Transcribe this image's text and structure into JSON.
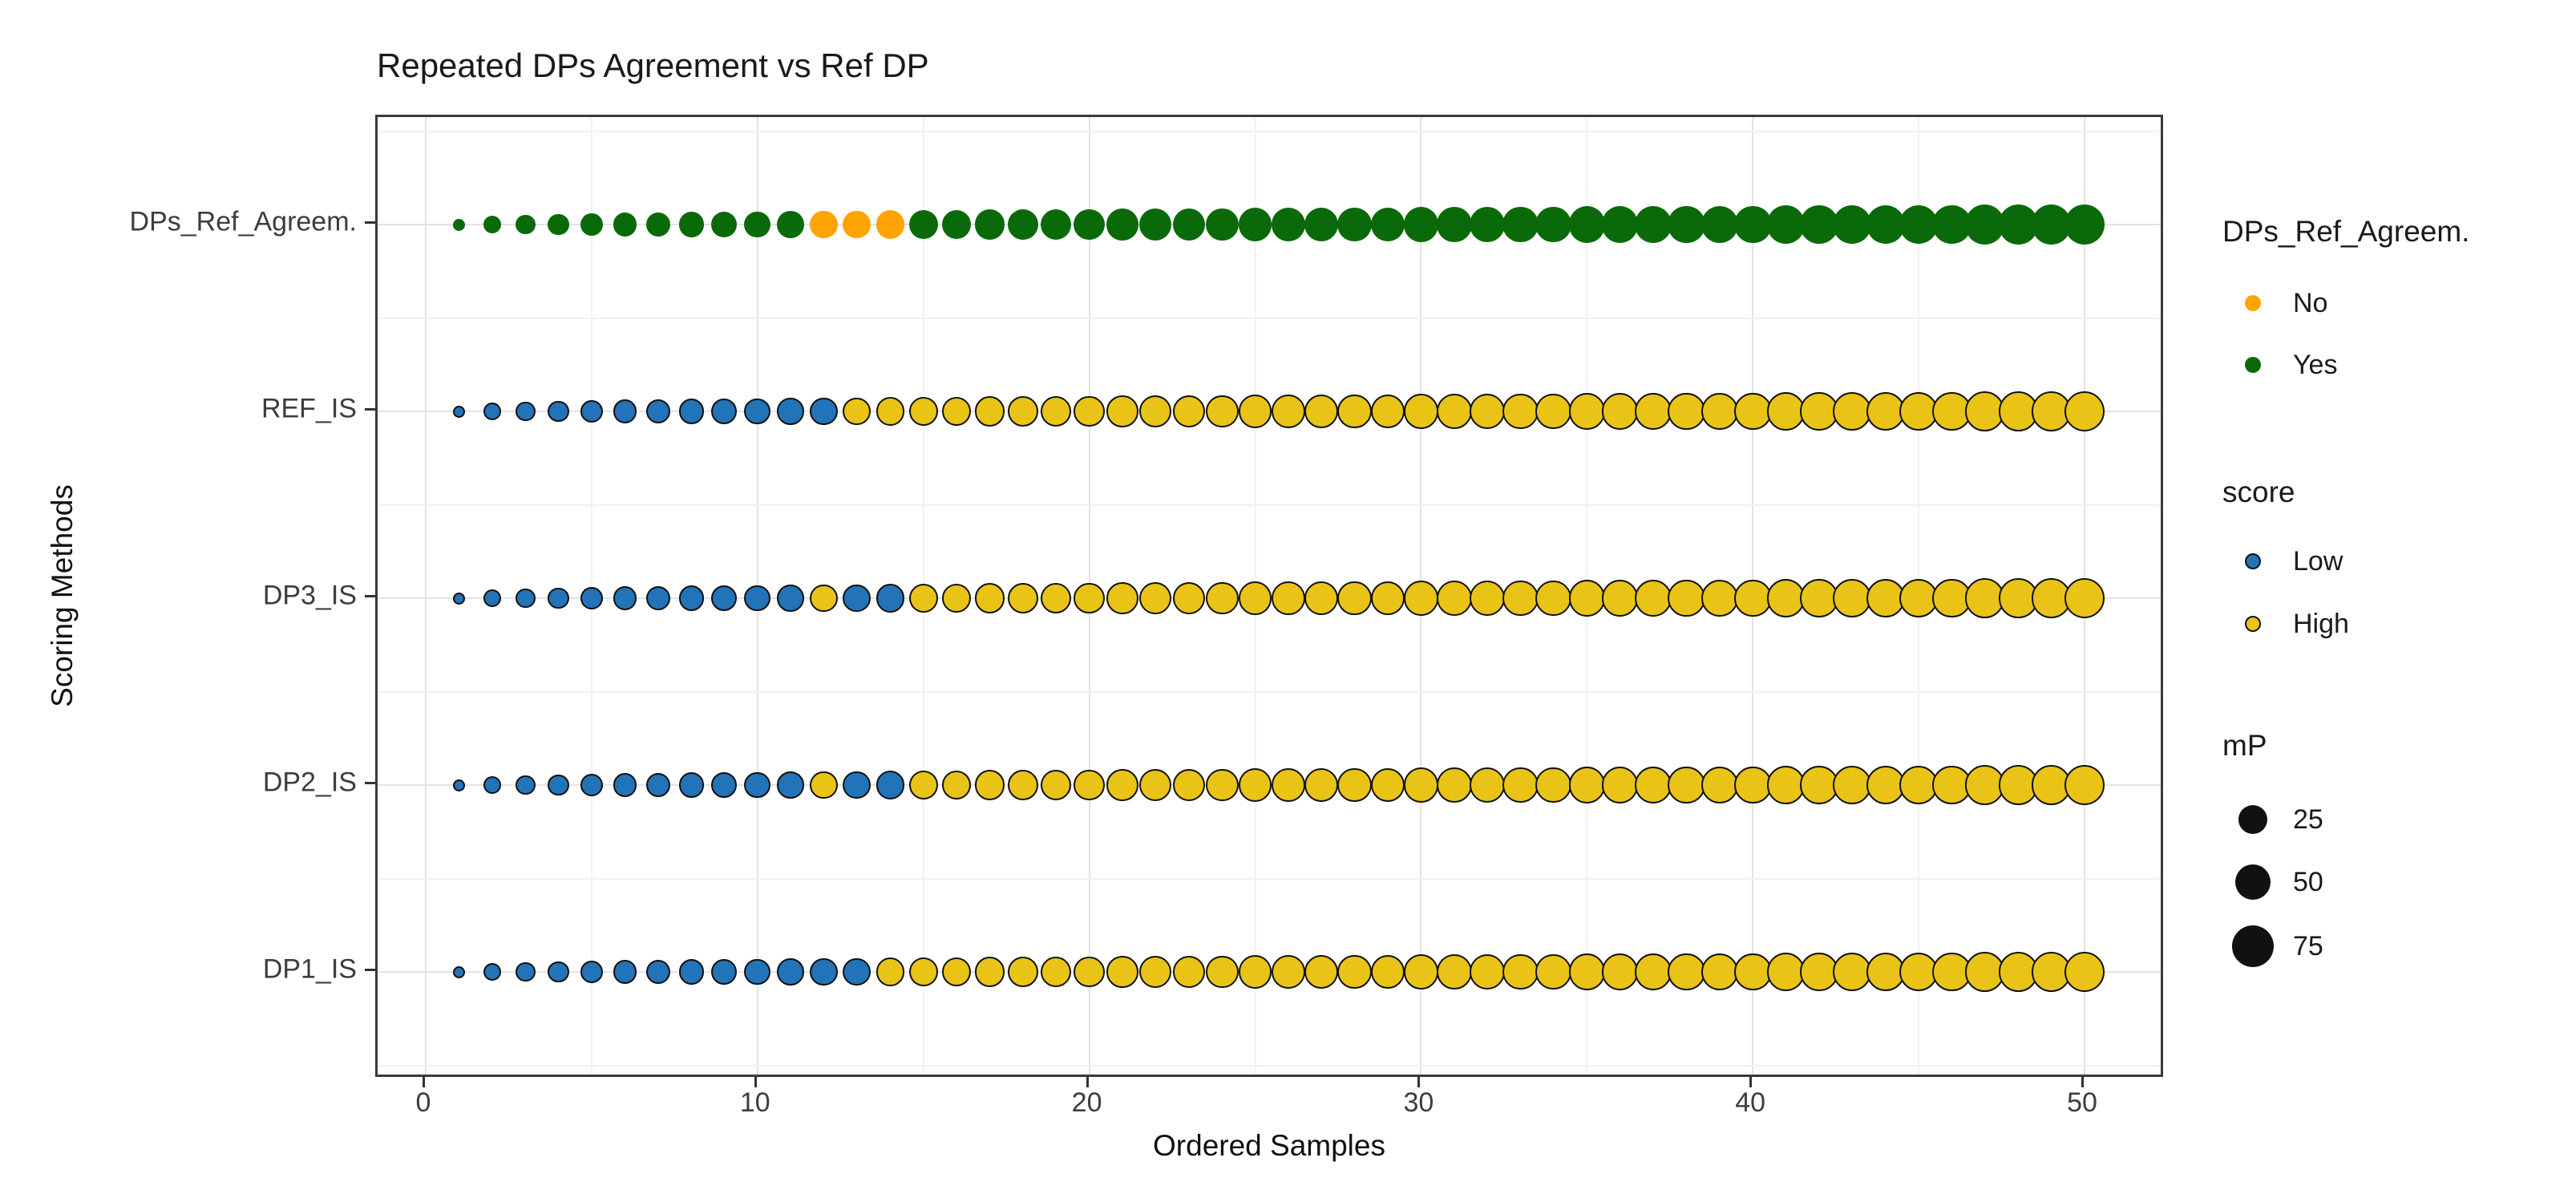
{
  "chart_data": {
    "type": "bubble-scatter",
    "title": "Repeated DPs Agreement vs Ref DP",
    "axes": {
      "x": {
        "title": "Ordered Samples",
        "tick_labels": [
          "0",
          "10",
          "20",
          "30",
          "40",
          "50"
        ],
        "tick_values": [
          0,
          10,
          20,
          30,
          40,
          50
        ],
        "minor_gridlines": [
          5,
          15,
          25,
          35,
          45
        ],
        "range": [
          1,
          50
        ]
      },
      "y": {
        "title": "Scoring Methods",
        "categories": [
          "DPs_Ref_Agreem.",
          "REF_IS",
          "DP3_IS",
          "DP2_IS",
          "DP1_IS"
        ]
      }
    },
    "legends": {
      "agreement": {
        "title": "DPs_Ref_Agreem.",
        "items": [
          {
            "label": "No",
            "color": "#FFA405"
          },
          {
            "label": "Yes",
            "color": "#0A6A0A"
          }
        ]
      },
      "score": {
        "title": "score",
        "items": [
          {
            "label": "Low",
            "color": "#2273B8"
          },
          {
            "label": "High",
            "color": "#E9C417"
          }
        ]
      },
      "mp": {
        "title": "mP",
        "items": [
          {
            "label": "25"
          },
          {
            "label": "50"
          },
          {
            "label": "75"
          }
        ]
      }
    },
    "colors": {
      "agreement": {
        "No": "#FFA405",
        "Yes": "#0A6A0A"
      },
      "score": {
        "Low": "#2273B8",
        "High": "#E9C417"
      },
      "point_outline": "#111111",
      "legend_size_key": "#111111"
    },
    "samples": [
      {
        "i": 1,
        "mp": 1,
        "agreement": "Yes",
        "ref": "Low",
        "dp3": "Low",
        "dp2": "Low",
        "dp1": "Low"
      },
      {
        "i": 2,
        "mp": 4,
        "agreement": "Yes",
        "ref": "Low",
        "dp3": "Low",
        "dp2": "Low",
        "dp1": "Low"
      },
      {
        "i": 3,
        "mp": 6,
        "agreement": "Yes",
        "ref": "Low",
        "dp3": "Low",
        "dp2": "Low",
        "dp1": "Low"
      },
      {
        "i": 4,
        "mp": 9,
        "agreement": "Yes",
        "ref": "Low",
        "dp3": "Low",
        "dp2": "Low",
        "dp1": "Low"
      },
      {
        "i": 5,
        "mp": 11,
        "agreement": "Yes",
        "ref": "Low",
        "dp3": "Low",
        "dp2": "Low",
        "dp1": "Low"
      },
      {
        "i": 6,
        "mp": 13,
        "agreement": "Yes",
        "ref": "Low",
        "dp3": "Low",
        "dp2": "Low",
        "dp1": "Low"
      },
      {
        "i": 7,
        "mp": 15,
        "agreement": "Yes",
        "ref": "Low",
        "dp3": "Low",
        "dp2": "Low",
        "dp1": "Low"
      },
      {
        "i": 8,
        "mp": 17,
        "agreement": "Yes",
        "ref": "Low",
        "dp3": "Low",
        "dp2": "Low",
        "dp1": "Low"
      },
      {
        "i": 9,
        "mp": 19,
        "agreement": "Yes",
        "ref": "Low",
        "dp3": "Low",
        "dp2": "Low",
        "dp1": "Low"
      },
      {
        "i": 10,
        "mp": 21,
        "agreement": "Yes",
        "ref": "Low",
        "dp3": "Low",
        "dp2": "Low",
        "dp1": "Low"
      },
      {
        "i": 11,
        "mp": 22,
        "agreement": "Yes",
        "ref": "Low",
        "dp3": "Low",
        "dp2": "Low",
        "dp1": "Low"
      },
      {
        "i": 12,
        "mp": 24,
        "agreement": "No",
        "ref": "Low",
        "dp3": "High",
        "dp2": "High",
        "dp1": "Low"
      },
      {
        "i": 13,
        "mp": 26,
        "agreement": "No",
        "ref": "High",
        "dp3": "Low",
        "dp2": "Low",
        "dp1": "Low"
      },
      {
        "i": 14,
        "mp": 28,
        "agreement": "No",
        "ref": "High",
        "dp3": "Low",
        "dp2": "Low",
        "dp1": "High"
      },
      {
        "i": 15,
        "mp": 29,
        "agreement": "Yes",
        "ref": "High",
        "dp3": "High",
        "dp2": "High",
        "dp1": "High"
      },
      {
        "i": 16,
        "mp": 31,
        "agreement": "Yes",
        "ref": "High",
        "dp3": "High",
        "dp2": "High",
        "dp1": "High"
      },
      {
        "i": 17,
        "mp": 33,
        "agreement": "Yes",
        "ref": "High",
        "dp3": "High",
        "dp2": "High",
        "dp1": "High"
      },
      {
        "i": 18,
        "mp": 34,
        "agreement": "Yes",
        "ref": "High",
        "dp3": "High",
        "dp2": "High",
        "dp1": "High"
      },
      {
        "i": 19,
        "mp": 36,
        "agreement": "Yes",
        "ref": "High",
        "dp3": "High",
        "dp2": "High",
        "dp1": "High"
      },
      {
        "i": 20,
        "mp": 37,
        "agreement": "Yes",
        "ref": "High",
        "dp3": "High",
        "dp2": "High",
        "dp1": "High"
      },
      {
        "i": 21,
        "mp": 39,
        "agreement": "Yes",
        "ref": "High",
        "dp3": "High",
        "dp2": "High",
        "dp1": "High"
      },
      {
        "i": 22,
        "mp": 41,
        "agreement": "Yes",
        "ref": "High",
        "dp3": "High",
        "dp2": "High",
        "dp1": "High"
      },
      {
        "i": 23,
        "mp": 42,
        "agreement": "Yes",
        "ref": "High",
        "dp3": "High",
        "dp2": "High",
        "dp1": "High"
      },
      {
        "i": 24,
        "mp": 44,
        "agreement": "Yes",
        "ref": "High",
        "dp3": "High",
        "dp2": "High",
        "dp1": "High"
      },
      {
        "i": 25,
        "mp": 45,
        "agreement": "Yes",
        "ref": "High",
        "dp3": "High",
        "dp2": "High",
        "dp1": "High"
      },
      {
        "i": 26,
        "mp": 47,
        "agreement": "Yes",
        "ref": "High",
        "dp3": "High",
        "dp2": "High",
        "dp1": "High"
      },
      {
        "i": 27,
        "mp": 48,
        "agreement": "Yes",
        "ref": "High",
        "dp3": "High",
        "dp2": "High",
        "dp1": "High"
      },
      {
        "i": 28,
        "mp": 50,
        "agreement": "Yes",
        "ref": "High",
        "dp3": "High",
        "dp2": "High",
        "dp1": "High"
      },
      {
        "i": 29,
        "mp": 51,
        "agreement": "Yes",
        "ref": "High",
        "dp3": "High",
        "dp2": "High",
        "dp1": "High"
      },
      {
        "i": 30,
        "mp": 53,
        "agreement": "Yes",
        "ref": "High",
        "dp3": "High",
        "dp2": "High",
        "dp1": "High"
      },
      {
        "i": 31,
        "mp": 54,
        "agreement": "Yes",
        "ref": "High",
        "dp3": "High",
        "dp2": "High",
        "dp1": "High"
      },
      {
        "i": 32,
        "mp": 55,
        "agreement": "Yes",
        "ref": "High",
        "dp3": "High",
        "dp2": "High",
        "dp1": "High"
      },
      {
        "i": 33,
        "mp": 57,
        "agreement": "Yes",
        "ref": "High",
        "dp3": "High",
        "dp2": "High",
        "dp1": "High"
      },
      {
        "i": 34,
        "mp": 58,
        "agreement": "Yes",
        "ref": "High",
        "dp3": "High",
        "dp2": "High",
        "dp1": "High"
      },
      {
        "i": 35,
        "mp": 60,
        "agreement": "Yes",
        "ref": "High",
        "dp3": "High",
        "dp2": "High",
        "dp1": "High"
      },
      {
        "i": 36,
        "mp": 61,
        "agreement": "Yes",
        "ref": "High",
        "dp3": "High",
        "dp2": "High",
        "dp1": "High"
      },
      {
        "i": 37,
        "mp": 62,
        "agreement": "Yes",
        "ref": "High",
        "dp3": "High",
        "dp2": "High",
        "dp1": "High"
      },
      {
        "i": 38,
        "mp": 64,
        "agreement": "Yes",
        "ref": "High",
        "dp3": "High",
        "dp2": "High",
        "dp1": "High"
      },
      {
        "i": 39,
        "mp": 65,
        "agreement": "Yes",
        "ref": "High",
        "dp3": "High",
        "dp2": "High",
        "dp1": "High"
      },
      {
        "i": 40,
        "mp": 67,
        "agreement": "Yes",
        "ref": "High",
        "dp3": "High",
        "dp2": "High",
        "dp1": "High"
      },
      {
        "i": 41,
        "mp": 68,
        "agreement": "Yes",
        "ref": "High",
        "dp3": "High",
        "dp2": "High",
        "dp1": "High"
      },
      {
        "i": 42,
        "mp": 69,
        "agreement": "Yes",
        "ref": "High",
        "dp3": "High",
        "dp2": "High",
        "dp1": "High"
      },
      {
        "i": 43,
        "mp": 71,
        "agreement": "Yes",
        "ref": "High",
        "dp3": "High",
        "dp2": "High",
        "dp1": "High"
      },
      {
        "i": 44,
        "mp": 72,
        "agreement": "Yes",
        "ref": "High",
        "dp3": "High",
        "dp2": "High",
        "dp1": "High"
      },
      {
        "i": 45,
        "mp": 73,
        "agreement": "Yes",
        "ref": "High",
        "dp3": "High",
        "dp2": "High",
        "dp1": "High"
      },
      {
        "i": 46,
        "mp": 75,
        "agreement": "Yes",
        "ref": "High",
        "dp3": "High",
        "dp2": "High",
        "dp1": "High"
      },
      {
        "i": 47,
        "mp": 76,
        "agreement": "Yes",
        "ref": "High",
        "dp3": "High",
        "dp2": "High",
        "dp1": "High"
      },
      {
        "i": 48,
        "mp": 77,
        "agreement": "Yes",
        "ref": "High",
        "dp3": "High",
        "dp2": "High",
        "dp1": "High"
      },
      {
        "i": 49,
        "mp": 79,
        "agreement": "Yes",
        "ref": "High",
        "dp3": "High",
        "dp2": "High",
        "dp1": "High"
      },
      {
        "i": 50,
        "mp": 80,
        "agreement": "Yes",
        "ref": "High",
        "dp3": "High",
        "dp2": "High",
        "dp1": "High"
      }
    ]
  }
}
